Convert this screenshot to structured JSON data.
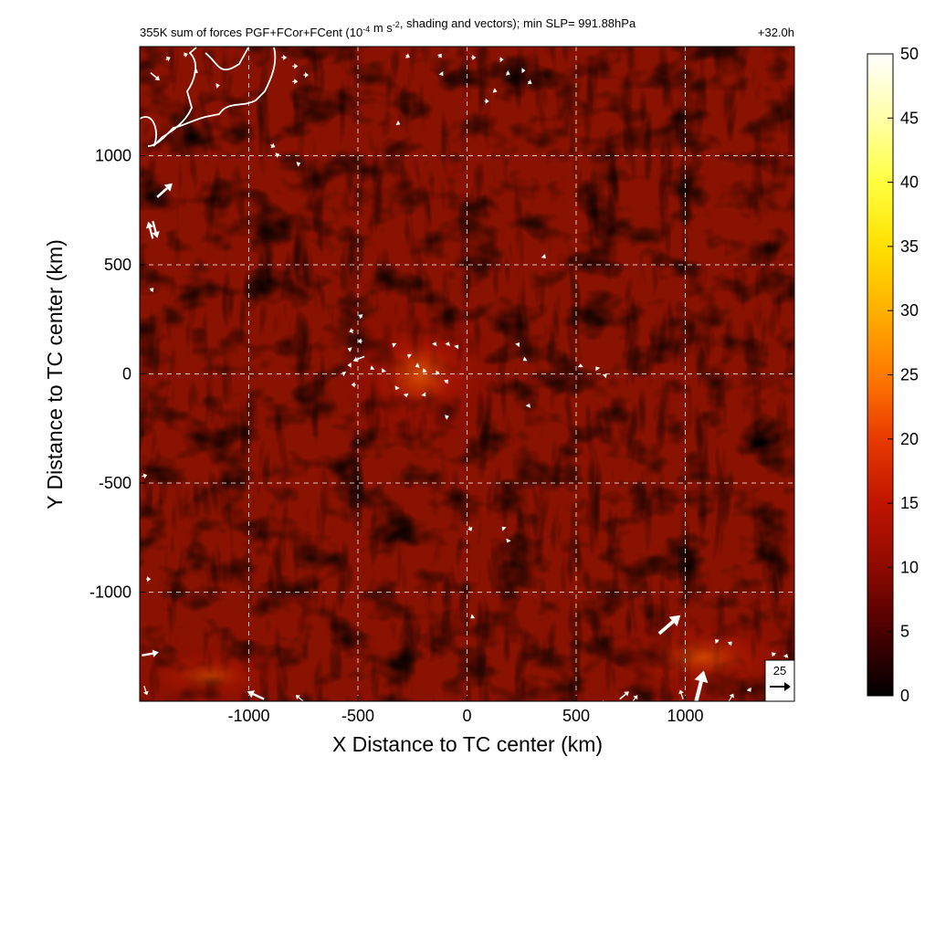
{
  "chart_data": {
    "type": "heatmap",
    "title": "355K sum of forces PGF+FCor+FCent (10",
    "title_exp": "-4",
    "title_mid": " m s",
    "title_exp2": "-2",
    "title_tail": ", shading and vectors); min SLP= 991.88hPa",
    "time_label": "+32.0h",
    "xlabel": "X Distance to TC center (km)",
    "ylabel": "Y Distance to TC center (km)",
    "xlim": [
      -1500,
      1500
    ],
    "ylim": [
      -1500,
      1500
    ],
    "x_ticks": [
      -1000,
      -500,
      0,
      500,
      1000
    ],
    "x_tick_labels": [
      "-1000",
      "-500",
      "0",
      "500",
      "1000"
    ],
    "y_ticks": [
      -1000,
      -500,
      0,
      500,
      1000
    ],
    "y_tick_labels": [
      "-1000",
      "-500",
      "0",
      "500",
      "1000"
    ],
    "grid": true,
    "colorbar": {
      "min": 0,
      "max": 50,
      "ticks": [
        0,
        5,
        10,
        15,
        20,
        25,
        30,
        35,
        40,
        45,
        50
      ],
      "tick_labels": [
        "0",
        "5",
        "10",
        "15",
        "20",
        "25",
        "30",
        "35",
        "40",
        "45",
        "50"
      ],
      "colors": [
        "#000000",
        "#4a0000",
        "#8e0a00",
        "#c01400",
        "#e83a00",
        "#ff7a00",
        "#ffb000",
        "#ffe000",
        "#ffff40",
        "#ffffa8",
        "#ffffff"
      ]
    },
    "reference_vector": {
      "label": "25",
      "value": 25
    },
    "vectors": [
      {
        "x": -1450,
        "y": 1380,
        "u": 12,
        "v": -10
      },
      {
        "x": -1380,
        "y": 1440,
        "u": 6,
        "v": 3
      },
      {
        "x": -1300,
        "y": 1460,
        "u": 6,
        "v": 2
      },
      {
        "x": -1250,
        "y": 1390,
        "u": 5,
        "v": -3
      },
      {
        "x": -1150,
        "y": 1320,
        "u": 5,
        "v": 1
      },
      {
        "x": -850,
        "y": 1450,
        "u": 7,
        "v": 0
      },
      {
        "x": -800,
        "y": 1410,
        "u": 7,
        "v": 0
      },
      {
        "x": -750,
        "y": 1370,
        "u": 7,
        "v": 0
      },
      {
        "x": -800,
        "y": 1340,
        "u": 7,
        "v": 0
      },
      {
        "x": -900,
        "y": 1050,
        "u": 6,
        "v": -3
      },
      {
        "x": -880,
        "y": 1000,
        "u": 6,
        "v": 2
      },
      {
        "x": -780,
        "y": 960,
        "u": 5,
        "v": 2
      },
      {
        "x": -1420,
        "y": 810,
        "u": 20,
        "v": 18
      },
      {
        "x": -1440,
        "y": 700,
        "u": 6,
        "v": -22
      },
      {
        "x": -1440,
        "y": 620,
        "u": -6,
        "v": 22
      },
      {
        "x": -1450,
        "y": 380,
        "u": 4,
        "v": 4
      },
      {
        "x": -280,
        "y": 1460,
        "u": 5,
        "v": -3
      },
      {
        "x": -130,
        "y": 1450,
        "u": 4,
        "v": 5
      },
      {
        "x": -120,
        "y": 1380,
        "u": 3,
        "v": -4
      },
      {
        "x": 20,
        "y": 1450,
        "u": 6,
        "v": 0
      },
      {
        "x": 150,
        "y": 1440,
        "u": 5,
        "v": 0
      },
      {
        "x": 180,
        "y": 1380,
        "u": 5,
        "v": -2
      },
      {
        "x": 250,
        "y": 1390,
        "u": 5,
        "v": 0
      },
      {
        "x": 280,
        "y": 1340,
        "u": 5,
        "v": -3
      },
      {
        "x": 120,
        "y": 1300,
        "u": 5,
        "v": -2
      },
      {
        "x": 80,
        "y": 1250,
        "u": 6,
        "v": 0
      },
      {
        "x": -320,
        "y": 1150,
        "u": 4,
        "v": -2
      },
      {
        "x": 350,
        "y": 540,
        "u": 3,
        "v": -3
      },
      {
        "x": -480,
        "y": 260,
        "u": -5,
        "v": 3
      },
      {
        "x": -520,
        "y": 200,
        "u": -6,
        "v": -2
      },
      {
        "x": -480,
        "y": 150,
        "u": -6,
        "v": 0
      },
      {
        "x": -530,
        "y": 110,
        "u": -5,
        "v": 2
      },
      {
        "x": -470,
        "y": 80,
        "u": -15,
        "v": -6
      },
      {
        "x": -530,
        "y": 40,
        "u": -5,
        "v": 0
      },
      {
        "x": -560,
        "y": 0,
        "u": -4,
        "v": 2
      },
      {
        "x": -510,
        "y": -50,
        "u": -6,
        "v": 0
      },
      {
        "x": -430,
        "y": 30,
        "u": -4,
        "v": -3
      },
      {
        "x": -380,
        "y": 20,
        "u": -3,
        "v": -4
      },
      {
        "x": -330,
        "y": 130,
        "u": -4,
        "v": 3
      },
      {
        "x": -260,
        "y": 80,
        "u": -4,
        "v": 3
      },
      {
        "x": -220,
        "y": 40,
        "u": -5,
        "v": -2
      },
      {
        "x": -190,
        "y": 20,
        "u": -4,
        "v": -4
      },
      {
        "x": -150,
        "y": 130,
        "u": 2,
        "v": 5
      },
      {
        "x": -90,
        "y": 130,
        "u": 2,
        "v": 5
      },
      {
        "x": -50,
        "y": 120,
        "u": 3,
        "v": 4
      },
      {
        "x": -130,
        "y": 10,
        "u": -4,
        "v": -4
      },
      {
        "x": -320,
        "y": -60,
        "u": -2,
        "v": -4
      },
      {
        "x": -280,
        "y": -90,
        "u": 1,
        "v": -5
      },
      {
        "x": -200,
        "y": -90,
        "u": 3,
        "v": -4
      },
      {
        "x": -100,
        "y": -40,
        "u": 4,
        "v": 4
      },
      {
        "x": -100,
        "y": -200,
        "u": 5,
        "v": 2
      },
      {
        "x": 230,
        "y": 130,
        "u": 3,
        "v": 4
      },
      {
        "x": 270,
        "y": 70,
        "u": -4,
        "v": -3
      },
      {
        "x": 280,
        "y": -150,
        "u": 2,
        "v": 4
      },
      {
        "x": 520,
        "y": 30,
        "u": 0,
        "v": 5
      },
      {
        "x": 600,
        "y": 20,
        "u": -3,
        "v": 4
      },
      {
        "x": 630,
        "y": -10,
        "u": 3,
        "v": 3
      },
      {
        "x": 10,
        "y": -700,
        "u": 3,
        "v": -6
      },
      {
        "x": 170,
        "y": -710,
        "u": -3,
        "v": 3
      },
      {
        "x": 190,
        "y": -760,
        "u": -2,
        "v": -4
      },
      {
        "x": 30,
        "y": -1110,
        "u": -4,
        "v": -3
      },
      {
        "x": 880,
        "y": -1190,
        "u": 28,
        "v": 24
      },
      {
        "x": 1150,
        "y": -1230,
        "u": -4,
        "v": 4
      },
      {
        "x": 1200,
        "y": -1240,
        "u": 4,
        "v": 4
      },
      {
        "x": 1410,
        "y": -1290,
        "u": -4,
        "v": 4
      },
      {
        "x": 1460,
        "y": -1300,
        "u": 2,
        "v": 5
      },
      {
        "x": 1050,
        "y": -1500,
        "u": 10,
        "v": 40
      },
      {
        "x": 990,
        "y": -1490,
        "u": -4,
        "v": 12
      },
      {
        "x": 1200,
        "y": -1500,
        "u": 6,
        "v": 10
      },
      {
        "x": 1290,
        "y": -1440,
        "u": 3,
        "v": -5
      },
      {
        "x": -1490,
        "y": -1290,
        "u": 22,
        "v": 4
      },
      {
        "x": -1480,
        "y": -1430,
        "u": 4,
        "v": -12
      },
      {
        "x": -930,
        "y": -1490,
        "u": -22,
        "v": 10
      },
      {
        "x": -750,
        "y": -1500,
        "u": -10,
        "v": 8
      },
      {
        "x": 620,
        "y": -1500,
        "u": 20,
        "v": -6
      },
      {
        "x": 700,
        "y": -1490,
        "u": 12,
        "v": 10
      },
      {
        "x": 760,
        "y": -1500,
        "u": 6,
        "v": 8
      },
      {
        "x": -1490,
        "y": -470,
        "u": 7,
        "v": 2
      },
      {
        "x": -1470,
        "y": -940,
        "u": 6,
        "v": 0
      }
    ]
  }
}
